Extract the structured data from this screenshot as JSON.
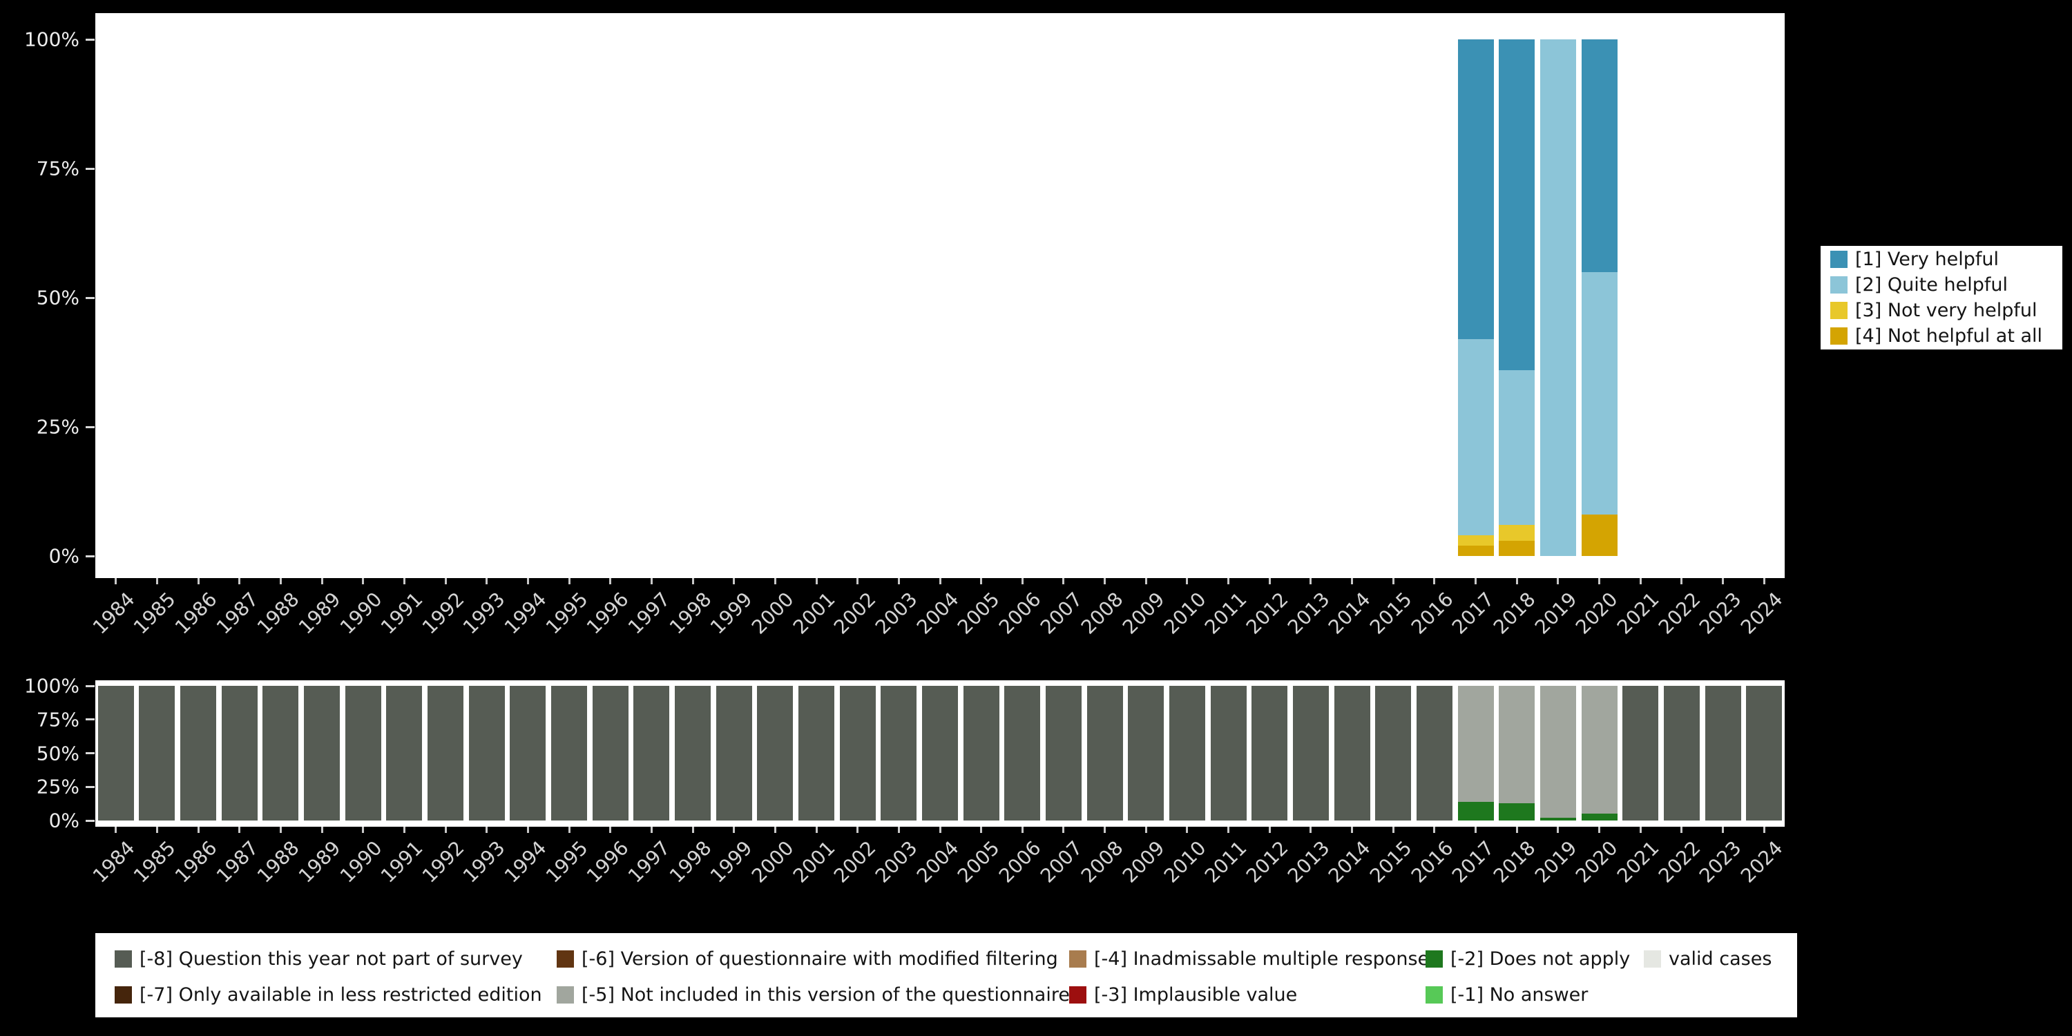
{
  "colors": {
    "background": "#000000",
    "panel": "#ffffff",
    "axis_text": "#d4d4d4"
  },
  "top_legend": {
    "items": [
      {
        "label": "[1] Very helpful",
        "color": "#3b91b4"
      },
      {
        "label": "[2] Quite helpful",
        "color": "#8cc5d8"
      },
      {
        "label": "[3] Not very helpful",
        "color": "#e8c82a"
      },
      {
        "label": "[4] Not helpful at all",
        "color": "#d4a402"
      }
    ]
  },
  "bottom_legend": {
    "items": [
      {
        "label": "[-8] Question this year not part of survey",
        "color": "#565c54",
        "col": 1,
        "row": 1
      },
      {
        "label": "[-7] Only available in less restricted edition",
        "color": "#45250c",
        "col": 1,
        "row": 2
      },
      {
        "label": "[-6] Version of questionnaire with modified filtering",
        "color": "#613512",
        "col": 2,
        "row": 1
      },
      {
        "label": "[-5] Not included in this version of the questionnaire",
        "color": "#a1a69e",
        "col": 2,
        "row": 2
      },
      {
        "label": "[-4] Inadmissable multiple response",
        "color": "#a87c4e",
        "col": 3,
        "row": 1
      },
      {
        "label": "[-3] Implausible value",
        "color": "#9d0f0f",
        "col": 3,
        "row": 2
      },
      {
        "label": "[-2] Does not apply",
        "color": "#1e781e",
        "col": 4,
        "row": 1
      },
      {
        "label": "[-1] No answer",
        "color": "#57c957",
        "col": 4,
        "row": 2
      },
      {
        "label": "valid cases",
        "color": "#e5e7e2",
        "col": 5,
        "row": 1
      }
    ]
  },
  "chart_data": [
    {
      "name": "answer-distribution",
      "type": "bar",
      "stacked": true,
      "unit": "percent of valid answers",
      "categories": [
        "1984",
        "1985",
        "1986",
        "1987",
        "1988",
        "1989",
        "1990",
        "1991",
        "1992",
        "1993",
        "1994",
        "1995",
        "1996",
        "1997",
        "1998",
        "1999",
        "2000",
        "2001",
        "2002",
        "2003",
        "2004",
        "2005",
        "2006",
        "2007",
        "2008",
        "2009",
        "2010",
        "2011",
        "2012",
        "2013",
        "2014",
        "2015",
        "2016",
        "2017",
        "2018",
        "2019",
        "2020",
        "2021",
        "2022",
        "2023",
        "2024"
      ],
      "y_ticks": [
        "100%",
        "75%",
        "50%",
        "25%",
        "0%"
      ],
      "ylim": [
        0,
        100
      ],
      "grid": false,
      "legend_position": "right",
      "stack_order": "series listed bottom-to-top",
      "series": [
        {
          "name": "[4] Not helpful at all",
          "color": "#d4a402",
          "default": 0,
          "values": {
            "2017": 2,
            "2018": 3,
            "2019": 0,
            "2020": 8
          }
        },
        {
          "name": "[3] Not very helpful",
          "color": "#e8c82a",
          "default": 0,
          "values": {
            "2017": 2,
            "2018": 3,
            "2019": 0,
            "2020": 0
          }
        },
        {
          "name": "[2] Quite helpful",
          "color": "#8cc5d8",
          "default": 0,
          "values": {
            "2017": 38,
            "2018": 30,
            "2019": 100,
            "2020": 47
          }
        },
        {
          "name": "[1] Very helpful",
          "color": "#3b91b4",
          "default": 0,
          "values": {
            "2017": 58,
            "2018": 64,
            "2019": 0,
            "2020": 45
          }
        }
      ]
    },
    {
      "name": "missing-values",
      "type": "bar",
      "stacked": true,
      "unit": "percent of all cases",
      "categories": [
        "1984",
        "1985",
        "1986",
        "1987",
        "1988",
        "1989",
        "1990",
        "1991",
        "1992",
        "1993",
        "1994",
        "1995",
        "1996",
        "1997",
        "1998",
        "1999",
        "2000",
        "2001",
        "2002",
        "2003",
        "2004",
        "2005",
        "2006",
        "2007",
        "2008",
        "2009",
        "2010",
        "2011",
        "2012",
        "2013",
        "2014",
        "2015",
        "2016",
        "2017",
        "2018",
        "2019",
        "2020",
        "2021",
        "2022",
        "2023",
        "2024"
      ],
      "y_ticks": [
        "100%",
        "75%",
        "50%",
        "25%",
        "0%"
      ],
      "ylim": [
        0,
        100
      ],
      "grid": false,
      "legend_position": "bottom",
      "stack_order": "series listed bottom-to-top",
      "series": [
        {
          "name": "[-2] Does not apply",
          "color": "#1e781e",
          "default": 0,
          "values": {
            "2017": 14,
            "2018": 13,
            "2019": 2,
            "2020": 5
          }
        },
        {
          "name": "[-5] Not included in this version of the questionnaire",
          "color": "#a1a69e",
          "default": 0,
          "values": {
            "2017": 86,
            "2018": 87,
            "2019": 98,
            "2020": 95
          }
        },
        {
          "name": "[-8] Question this year not part of survey",
          "color": "#565c54",
          "default": 100,
          "values": {
            "2017": 0,
            "2018": 0,
            "2019": 0,
            "2020": 0
          }
        }
      ]
    }
  ]
}
